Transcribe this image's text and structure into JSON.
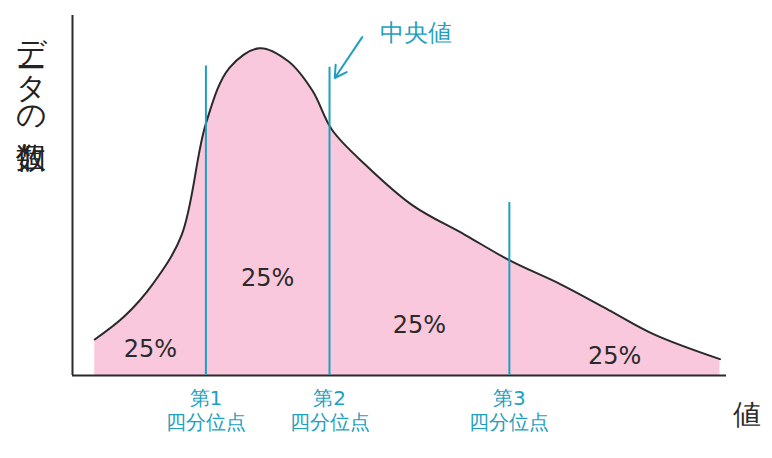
{
  "chart_data": {
    "type": "area",
    "x": [
      3.4,
      7.9,
      12.3,
      16.7,
      20.4,
      24,
      28.6,
      33,
      36.7,
      39.7,
      45,
      52,
      60,
      67,
      74.5,
      82,
      89,
      99
    ],
    "values": [
      11,
      18,
      28,
      43,
      77,
      94,
      100,
      96,
      87,
      75,
      64,
      52,
      43,
      35,
      28,
      20,
      12.5,
      5
    ],
    "color": "#f7b6d2",
    "xlim": [
      0,
      100
    ],
    "ylim": [
      0,
      110
    ],
    "tick_labels": false,
    "x_label": "値",
    "y_label": "データの個数",
    "quartiles": [
      {
        "value": 20.4,
        "label": "第1四分位点"
      },
      {
        "value": 39.3,
        "label": "第2四分位点",
        "annotation": "中央値"
      },
      {
        "value": 66.8,
        "label": "第3四分位点"
      }
    ],
    "regions": {
      "values": [
        25,
        25,
        25,
        25
      ],
      "value_labels": [
        "25%",
        "25%",
        "25%",
        "25%"
      ]
    }
  }
}
